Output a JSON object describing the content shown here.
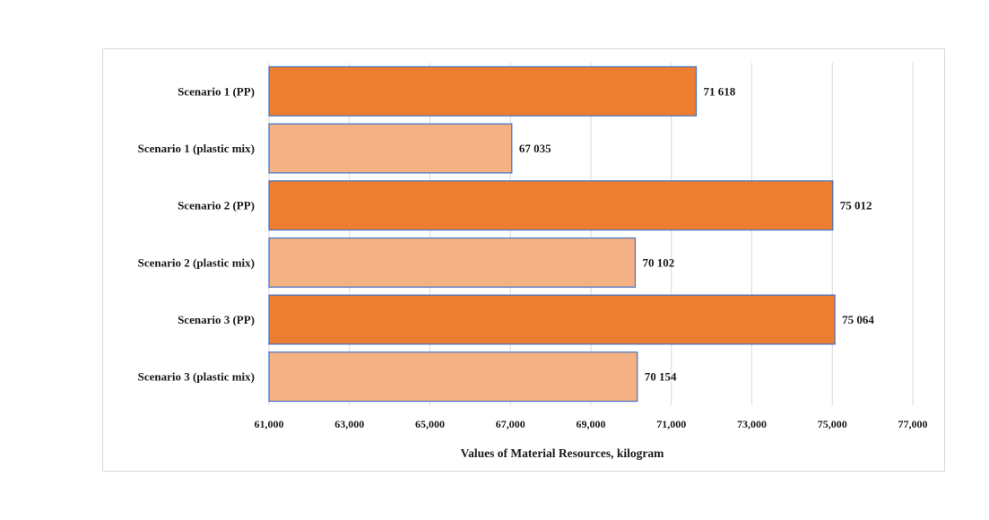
{
  "chart_data": {
    "type": "bar",
    "orientation": "horizontal",
    "categories": [
      "Scenario 1 (PP)",
      "Scenario 1 (plastic mix)",
      "Scenario 2 (PP)",
      "Scenario 2 (plastic mix)",
      "Scenario 3 (PP)",
      "Scenario 3 (plastic mix)"
    ],
    "values": [
      71618,
      67035,
      75012,
      70102,
      75064,
      70154
    ],
    "value_labels": [
      "71 618",
      "67 035",
      "75 012",
      "70 102",
      "75 064",
      "70 154"
    ],
    "bar_colors": [
      "#ED7D31",
      "#F4B183",
      "#ED7D31",
      "#F4B183",
      "#ED7D31",
      "#F4B183"
    ],
    "bar_outline_color": "#4472C4",
    "xlim": [
      61000,
      77000
    ],
    "xticks": [
      61000,
      63000,
      65000,
      67000,
      69000,
      71000,
      73000,
      75000,
      77000
    ],
    "xtick_labels": [
      "61,000",
      "63,000",
      "65,000",
      "67,000",
      "69,000",
      "71,000",
      "73,000",
      "75,000",
      "77,000"
    ],
    "xlabel": "Values of Material Resources, kilogram",
    "ylabel": "",
    "title": "",
    "grid": "vertical",
    "legend": "none"
  }
}
